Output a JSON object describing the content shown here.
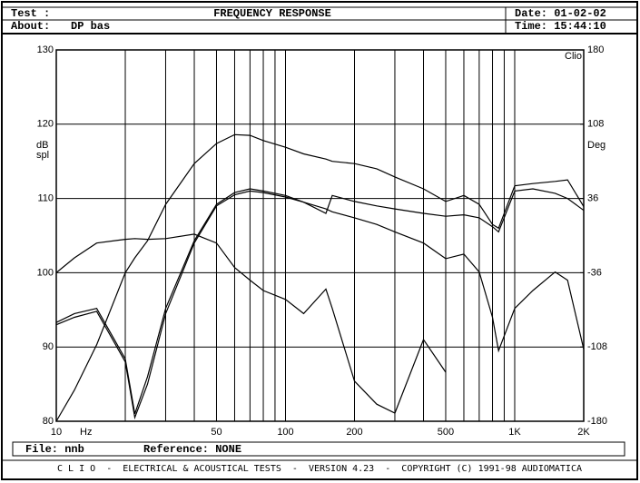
{
  "header": {
    "test_label": "Test :",
    "title": "FREQUENCY RESPONSE",
    "date": "Date: 01-02-02",
    "about_label": "About:",
    "about": "DP bas",
    "time": "Time: 15:44:10"
  },
  "chart_data": {
    "type": "line",
    "xscale": "log",
    "xlim": [
      10,
      2000
    ],
    "ylim": [
      80,
      130
    ],
    "y2lim": [
      -180,
      180
    ],
    "xticks": [
      10,
      50,
      100,
      200,
      500,
      {
        "value": 1000,
        "label": "1K"
      },
      {
        "value": 2000,
        "label": "2K"
      }
    ],
    "xgrid": [
      20,
      30,
      40,
      60,
      70,
      80,
      90,
      300,
      400,
      600,
      700,
      800,
      900
    ],
    "yticks": [
      80,
      90,
      100,
      110,
      120,
      130
    ],
    "y2ticks": [
      -180,
      -108,
      -36,
      36,
      108,
      180
    ],
    "xlabel": "Hz",
    "ylabel": [
      "dB",
      "spl"
    ],
    "y2label": "Deg",
    "corner_label": "Clio",
    "grid": true,
    "x": [
      10,
      12,
      15,
      20,
      22,
      25,
      30,
      40,
      50,
      60,
      70,
      80,
      100,
      120,
      150,
      160,
      200,
      250,
      300,
      400,
      500,
      600,
      700,
      800,
      850,
      1000,
      1200,
      1500,
      1700,
      2000
    ],
    "series": [
      {
        "color": "#000000",
        "values": [
          80,
          84.2,
          90.3,
          100,
          102,
          104.3,
          109.2,
          114.7,
          117.4,
          118.6,
          118.5,
          117.8,
          116.9,
          116,
          115.3,
          115,
          114.7,
          114,
          112.9,
          111.3,
          109.6,
          110.4,
          109.2,
          106.5,
          106,
          111.7,
          112,
          112.3,
          112.5,
          108.9
        ]
      },
      {
        "color": "#000000",
        "values": [
          93.3,
          94.5,
          95.2,
          88.4,
          81,
          86,
          95.2,
          104.3,
          109.2,
          110.8,
          111.3,
          111,
          110.4,
          109.5,
          108,
          110.4,
          109.6,
          109,
          108.6,
          108,
          107.6,
          107.8,
          107.4,
          106.2,
          105.5,
          111,
          111.3,
          110.7,
          110,
          108.4
        ]
      },
      {
        "color": "#000000",
        "values": [
          93,
          94,
          94.8,
          88,
          80.5,
          85,
          94.5,
          104,
          109,
          110.5,
          111,
          110.8,
          110.2,
          109.5,
          108.6,
          108.2,
          107.4,
          106.5,
          105.5,
          104,
          101.9,
          102.5,
          100.1,
          94,
          89.5,
          95.2,
          97.6,
          100.1,
          99,
          89.7
        ]
      },
      {
        "color": "#000000",
        "values": [
          100,
          102,
          104,
          104.5,
          104.6,
          104.5,
          104.6,
          105.2,
          104,
          100.7,
          99,
          97.6,
          96.4,
          94.5,
          97.8,
          95.2,
          85.4,
          82.3,
          81.1,
          91,
          86.6,
          null,
          null,
          null,
          null,
          null,
          null,
          null,
          null,
          null
        ]
      }
    ]
  },
  "footer": {
    "file": "File: nnb",
    "reference": "Reference: NONE",
    "credits": "C L I O  -  ELECTRICAL & ACOUSTICAL TESTS  -  VERSION 4.23  -  COPYRIGHT (C) 1991-98 AUDIOMATICA"
  }
}
